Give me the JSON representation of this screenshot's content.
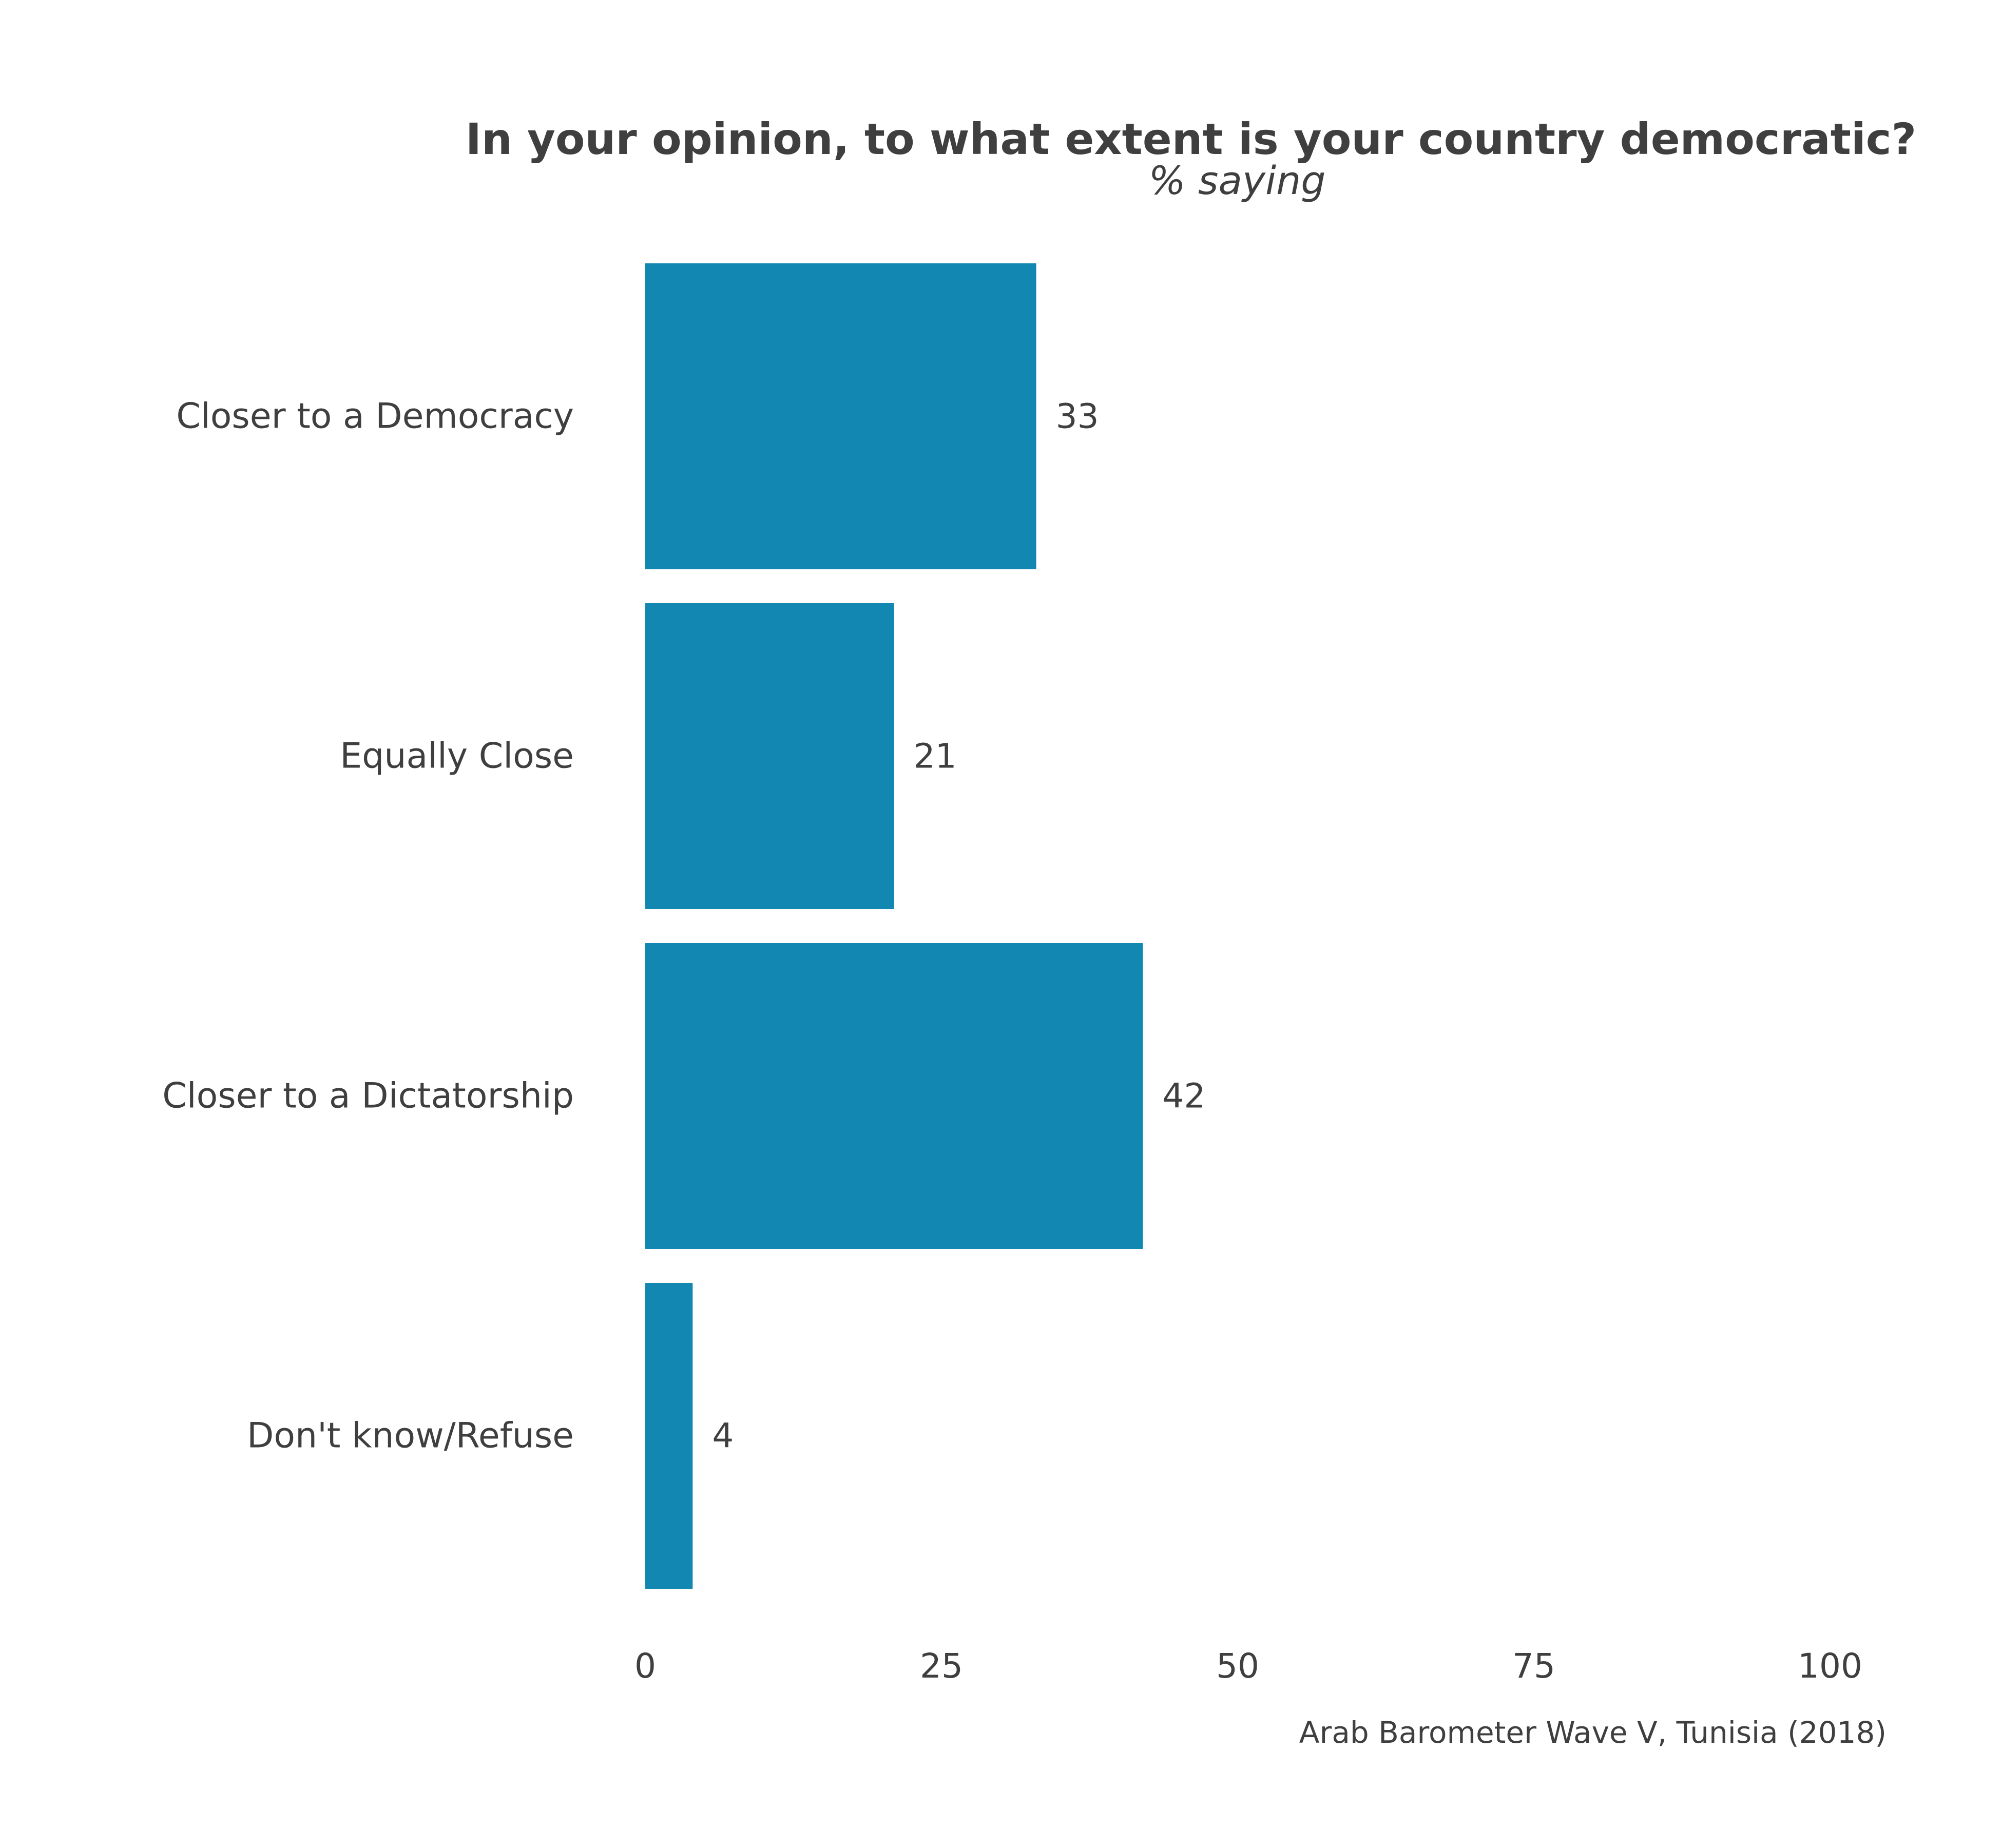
{
  "chart_data": {
    "type": "bar",
    "orientation": "horizontal",
    "title": "In your opinion, to what extent is your country democratic?",
    "subtitle": "% saying",
    "categories": [
      "Closer to a Democracy",
      "Equally Close",
      "Closer to a Dictatorship",
      "Don't know/Refuse"
    ],
    "values": [
      33,
      21,
      42,
      4
    ],
    "value_labels": [
      "33",
      "21",
      "42",
      "4"
    ],
    "xlim": [
      0,
      100
    ],
    "xticks": [
      0,
      25,
      50,
      75,
      100
    ],
    "xtick_labels": [
      "0",
      "25",
      "50",
      "75",
      "100"
    ],
    "grid": false,
    "legend": "none",
    "bar_color": "#1287b1",
    "text_color": "#3f3f3f",
    "caption": "Arab Barometer Wave V, Tunisia (2018)"
  }
}
